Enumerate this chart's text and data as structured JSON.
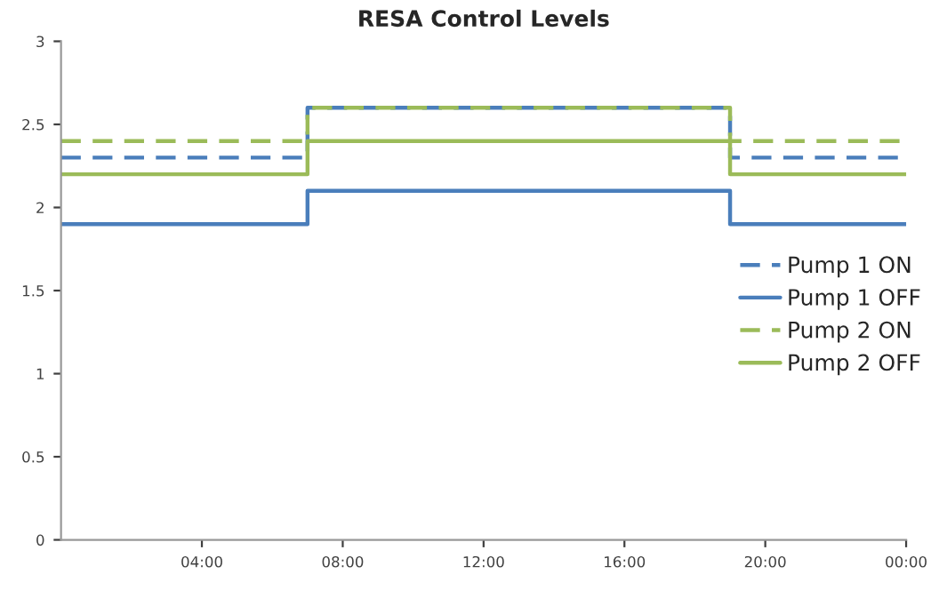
{
  "chart_data": {
    "type": "step",
    "title": "RESA Control Levels",
    "x": [
      0,
      7,
      19,
      24
    ],
    "series": [
      {
        "name": "Pump 1 ON",
        "color": "#4a7ebb",
        "line_style": "dashed",
        "values": [
          2.3,
          2.6,
          2.3,
          2.3
        ]
      },
      {
        "name": "Pump 1 OFF",
        "color": "#4a7ebb",
        "line_style": "solid",
        "values": [
          1.9,
          2.1,
          1.9,
          1.9
        ]
      },
      {
        "name": "Pump 2 ON",
        "color": "#9bbb59",
        "line_style": "dashed",
        "values": [
          2.4,
          2.6,
          2.4,
          2.4
        ]
      },
      {
        "name": "Pump 2 OFF",
        "color": "#9bbb59",
        "line_style": "solid",
        "values": [
          2.2,
          2.4,
          2.2,
          2.2
        ]
      }
    ],
    "xlim": [
      0,
      24
    ],
    "xticks": [
      {
        "value": 4,
        "label": "04:00"
      },
      {
        "value": 8,
        "label": "08:00"
      },
      {
        "value": 12,
        "label": "12:00"
      },
      {
        "value": 16,
        "label": "16:00"
      },
      {
        "value": 20,
        "label": "20:00"
      },
      {
        "value": 24,
        "label": "00:00"
      }
    ],
    "ylim": [
      0,
      3
    ],
    "yticks": [
      0,
      0.5,
      1,
      1.5,
      2,
      2.5,
      3
    ],
    "grid": false,
    "legend": "right"
  }
}
